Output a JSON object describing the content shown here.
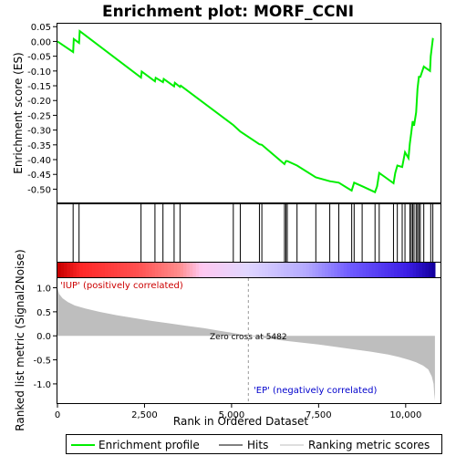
{
  "chart_data": [
    {
      "type": "line",
      "title": "Enrichment plot: MORF_CCNI",
      "ylabel": "Enrichment score (ES)",
      "ylim": [
        -0.545,
        0.06
      ],
      "yticks": [
        "0.05",
        "0.00",
        "-0.05",
        "-0.10",
        "-0.15",
        "-0.20",
        "-0.25",
        "-0.30",
        "-0.35",
        "-0.40",
        "-0.45",
        "-0.50"
      ],
      "ytick_values": [
        0.05,
        0.0,
        -0.05,
        -0.1,
        -0.15,
        -0.2,
        -0.25,
        -0.3,
        -0.35,
        -0.4,
        -0.45,
        -0.5
      ],
      "grid": false,
      "color": "#00ee00",
      "x": [
        0,
        450,
        470,
        620,
        640,
        2400,
        2420,
        2800,
        2820,
        3030,
        3050,
        3350,
        3370,
        3520,
        3540,
        5050,
        5250,
        5800,
        5870,
        6520,
        6560,
        6600,
        6880,
        7420,
        7820,
        8080,
        8450,
        8520,
        8750,
        9120,
        9180,
        9240,
        9650,
        9700,
        9760,
        9900,
        9980,
        10080,
        10120,
        10160,
        10200,
        10240,
        10300,
        10340,
        10380,
        10420,
        10520,
        10700,
        10720,
        10780,
        10800
      ],
      "y": [
        0.0,
        -0.036,
        0.008,
        -0.005,
        0.035,
        -0.122,
        -0.102,
        -0.135,
        -0.123,
        -0.138,
        -0.127,
        -0.152,
        -0.14,
        -0.154,
        -0.15,
        -0.283,
        -0.305,
        -0.348,
        -0.35,
        -0.415,
        -0.405,
        -0.405,
        -0.42,
        -0.46,
        -0.473,
        -0.478,
        -0.505,
        -0.478,
        -0.49,
        -0.51,
        -0.49,
        -0.445,
        -0.48,
        -0.445,
        -0.42,
        -0.425,
        -0.375,
        -0.395,
        -0.345,
        -0.31,
        -0.27,
        -0.285,
        -0.24,
        -0.16,
        -0.12,
        -0.12,
        -0.085,
        -0.1,
        -0.05,
        0.008,
        0.007
      ]
    },
    {
      "type": "scatter",
      "name": "hits",
      "x": [
        450,
        620,
        2400,
        2800,
        3030,
        3350,
        3520,
        5050,
        5250,
        5800,
        5870,
        6520,
        6560,
        6600,
        6880,
        7420,
        7820,
        8080,
        8450,
        8520,
        8750,
        9120,
        9240,
        9650,
        9760,
        9900,
        9980,
        10120,
        10160,
        10200,
        10240,
        10300,
        10340,
        10380,
        10420,
        10520,
        10720,
        10780
      ]
    },
    {
      "type": "area",
      "ylabel": "Ranked list metric (Signal2Noise)",
      "xlabel": "Rank in Ordered Dataset",
      "xlim": [
        0,
        11000
      ],
      "ylim": [
        -1.4,
        1.2
      ],
      "xticks": [
        "0",
        "2,500",
        "5,000",
        "7,500",
        "10,000"
      ],
      "xtick_values": [
        0,
        2500,
        5000,
        7500,
        10000
      ],
      "yticks": [
        "1.0",
        "0.5",
        "0.0",
        "-0.5",
        "-1.0"
      ],
      "ytick_values": [
        1.0,
        0.5,
        0.0,
        -0.5,
        -1.0
      ],
      "x": [
        0,
        50,
        150,
        300,
        500,
        800,
        1200,
        1700,
        2200,
        2700,
        3200,
        3700,
        4200,
        4700,
        5200,
        5482,
        6000,
        6500,
        7000,
        7500,
        8000,
        8500,
        9000,
        9500,
        9800,
        10100,
        10300,
        10500,
        10650,
        10750,
        10800,
        10820,
        10840
      ],
      "values": [
        1.0,
        0.87,
        0.78,
        0.7,
        0.63,
        0.57,
        0.5,
        0.43,
        0.37,
        0.31,
        0.26,
        0.21,
        0.16,
        0.1,
        0.04,
        0.0,
        -0.05,
        -0.1,
        -0.14,
        -0.18,
        -0.23,
        -0.28,
        -0.33,
        -0.39,
        -0.44,
        -0.5,
        -0.55,
        -0.62,
        -0.7,
        -0.85,
        -1.0,
        -1.2,
        -1.35
      ],
      "zero_cross_label": "Zero cross at 5482",
      "zero_cross": 5482,
      "pos_label": "'IUP' (positively correlated)",
      "neg_label": "'EP' (negatively correlated)"
    }
  ],
  "legend": {
    "enrichment": "Enrichment profile",
    "hits": "Hits",
    "ranking": "Ranking metric scores"
  }
}
